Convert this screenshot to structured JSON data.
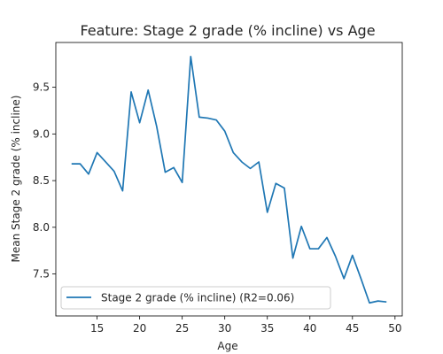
{
  "chart_data": {
    "type": "line",
    "title": "Feature: Stage 2 grade (% incline) vs Age",
    "xlabel": "Age",
    "ylabel": "Mean Stage 2 grade (% incline)",
    "xlim": [
      10.15,
      50.85
    ],
    "ylim": [
      7.05,
      9.98
    ],
    "xticks": [
      15,
      20,
      25,
      30,
      35,
      40,
      45,
      50
    ],
    "yticks": [
      7.5,
      8.0,
      8.5,
      9.0,
      9.5
    ],
    "xtick_labels": [
      "15",
      "20",
      "25",
      "30",
      "35",
      "40",
      "45",
      "50"
    ],
    "ytick_labels": [
      "7.5",
      "8.0",
      "8.5",
      "9.0",
      "9.5"
    ],
    "grid": false,
    "legend_position": "lower-left",
    "series": [
      {
        "name": "Stage 2 grade (% incline) (R2=0.06)",
        "color": "#1f77b4",
        "x": [
          12,
          13,
          14,
          15,
          16,
          17,
          18,
          19,
          20,
          21,
          22,
          23,
          24,
          25,
          26,
          27,
          28,
          29,
          30,
          31,
          32,
          33,
          34,
          35,
          36,
          37,
          38,
          39,
          40,
          41,
          42,
          43,
          44,
          45,
          46,
          47,
          48,
          49
        ],
        "y": [
          8.68,
          8.68,
          8.57,
          8.8,
          8.7,
          8.6,
          8.39,
          9.45,
          9.12,
          9.47,
          9.08,
          8.59,
          8.64,
          8.48,
          9.83,
          9.18,
          9.17,
          9.15,
          9.03,
          8.8,
          8.7,
          8.63,
          8.7,
          8.16,
          8.47,
          8.42,
          7.67,
          8.01,
          7.77,
          7.77,
          7.89,
          7.69,
          7.45,
          7.7,
          7.45,
          7.19,
          7.21,
          7.2
        ]
      }
    ]
  }
}
